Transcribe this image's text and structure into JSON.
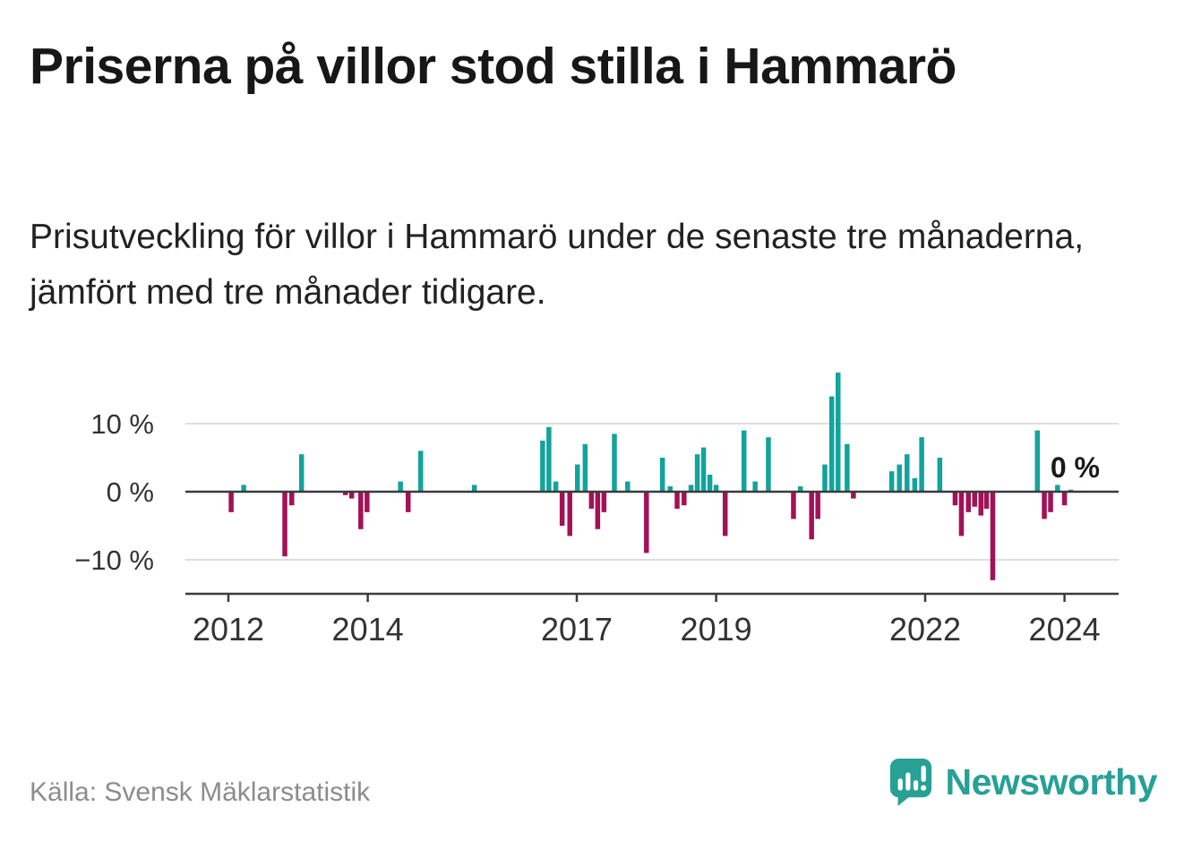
{
  "header": {
    "title": "Priserna på villor stod stilla i Hammarö",
    "subtitle": "Prisutveckling för villor i Hammarö under de senaste tre månaderna, jämfört med tre månader tidigare."
  },
  "footer": {
    "source": "Källa: Svensk Mäklarstatistik",
    "brand_name": "Newsworthy"
  },
  "colors": {
    "positive": "#12a39c",
    "negative": "#a31156",
    "brand": "#27a096",
    "axis": "#3b3b3b",
    "grid": "#d4d4d4",
    "tick_text": "#333333",
    "annotation_text": "#1a1a1a"
  },
  "chart_data": {
    "type": "bar",
    "title": "Prisutveckling för villor i Hammarö, tre månader jämfört med tre månader tidigare",
    "unit": "%",
    "annotation": "0 %",
    "x_axis": {
      "ticks": [
        2012,
        2014,
        2017,
        2019,
        2022,
        2024
      ],
      "range": [
        2011.38,
        2024.77
      ]
    },
    "y_axis": {
      "ticks": [
        {
          "value": 10,
          "label": "10 %"
        },
        {
          "value": 0,
          "label": "0 %"
        },
        {
          "value": -10,
          "label": "−10 %"
        }
      ],
      "range": [
        -15,
        19.5
      ],
      "gridlines": true
    },
    "bars": [
      [
        2012.04,
        -3
      ],
      [
        2012.22,
        1
      ],
      [
        2012.81,
        -9.5
      ],
      [
        2012.91,
        -2
      ],
      [
        2013.05,
        5.5
      ],
      [
        2013.68,
        -0.5
      ],
      [
        2013.77,
        -1
      ],
      [
        2013.9,
        -5.5
      ],
      [
        2013.99,
        -3
      ],
      [
        2014.47,
        1.5
      ],
      [
        2014.58,
        -3
      ],
      [
        2014.76,
        6
      ],
      [
        2015.53,
        1
      ],
      [
        2016.51,
        7.5
      ],
      [
        2016.6,
        9.5
      ],
      [
        2016.7,
        1.5
      ],
      [
        2016.79,
        -5
      ],
      [
        2016.9,
        -6.5
      ],
      [
        2017.01,
        4
      ],
      [
        2017.12,
        7
      ],
      [
        2017.21,
        -2.5
      ],
      [
        2017.3,
        -5.5
      ],
      [
        2017.39,
        -3
      ],
      [
        2017.54,
        8.5
      ],
      [
        2017.73,
        1.5
      ],
      [
        2018.0,
        -9
      ],
      [
        2018.23,
        5
      ],
      [
        2018.34,
        0.8
      ],
      [
        2018.44,
        -2.5
      ],
      [
        2018.54,
        -2
      ],
      [
        2018.64,
        1
      ],
      [
        2018.73,
        5.5
      ],
      [
        2018.82,
        6.5
      ],
      [
        2018.91,
        2.5
      ],
      [
        2019.0,
        1
      ],
      [
        2019.13,
        -6.5
      ],
      [
        2019.4,
        9
      ],
      [
        2019.56,
        1.5
      ],
      [
        2019.75,
        8
      ],
      [
        2020.11,
        -4
      ],
      [
        2020.21,
        0.8
      ],
      [
        2020.37,
        -7
      ],
      [
        2020.46,
        -4
      ],
      [
        2020.56,
        4
      ],
      [
        2020.66,
        14
      ],
      [
        2020.75,
        17.5
      ],
      [
        2020.88,
        7
      ],
      [
        2020.97,
        -1
      ],
      [
        2021.52,
        3
      ],
      [
        2021.63,
        4
      ],
      [
        2021.74,
        5.5
      ],
      [
        2021.85,
        2
      ],
      [
        2021.95,
        8
      ],
      [
        2022.21,
        5
      ],
      [
        2022.43,
        -2
      ],
      [
        2022.52,
        -6.5
      ],
      [
        2022.62,
        -3
      ],
      [
        2022.71,
        -2.2
      ],
      [
        2022.8,
        -3.5
      ],
      [
        2022.88,
        -2.5
      ],
      [
        2022.97,
        -13
      ],
      [
        2023.61,
        9
      ],
      [
        2023.71,
        -4
      ],
      [
        2023.8,
        -3
      ],
      [
        2023.9,
        1
      ],
      [
        2024.0,
        -2
      ],
      [
        2024.09,
        0.3
      ]
    ]
  }
}
